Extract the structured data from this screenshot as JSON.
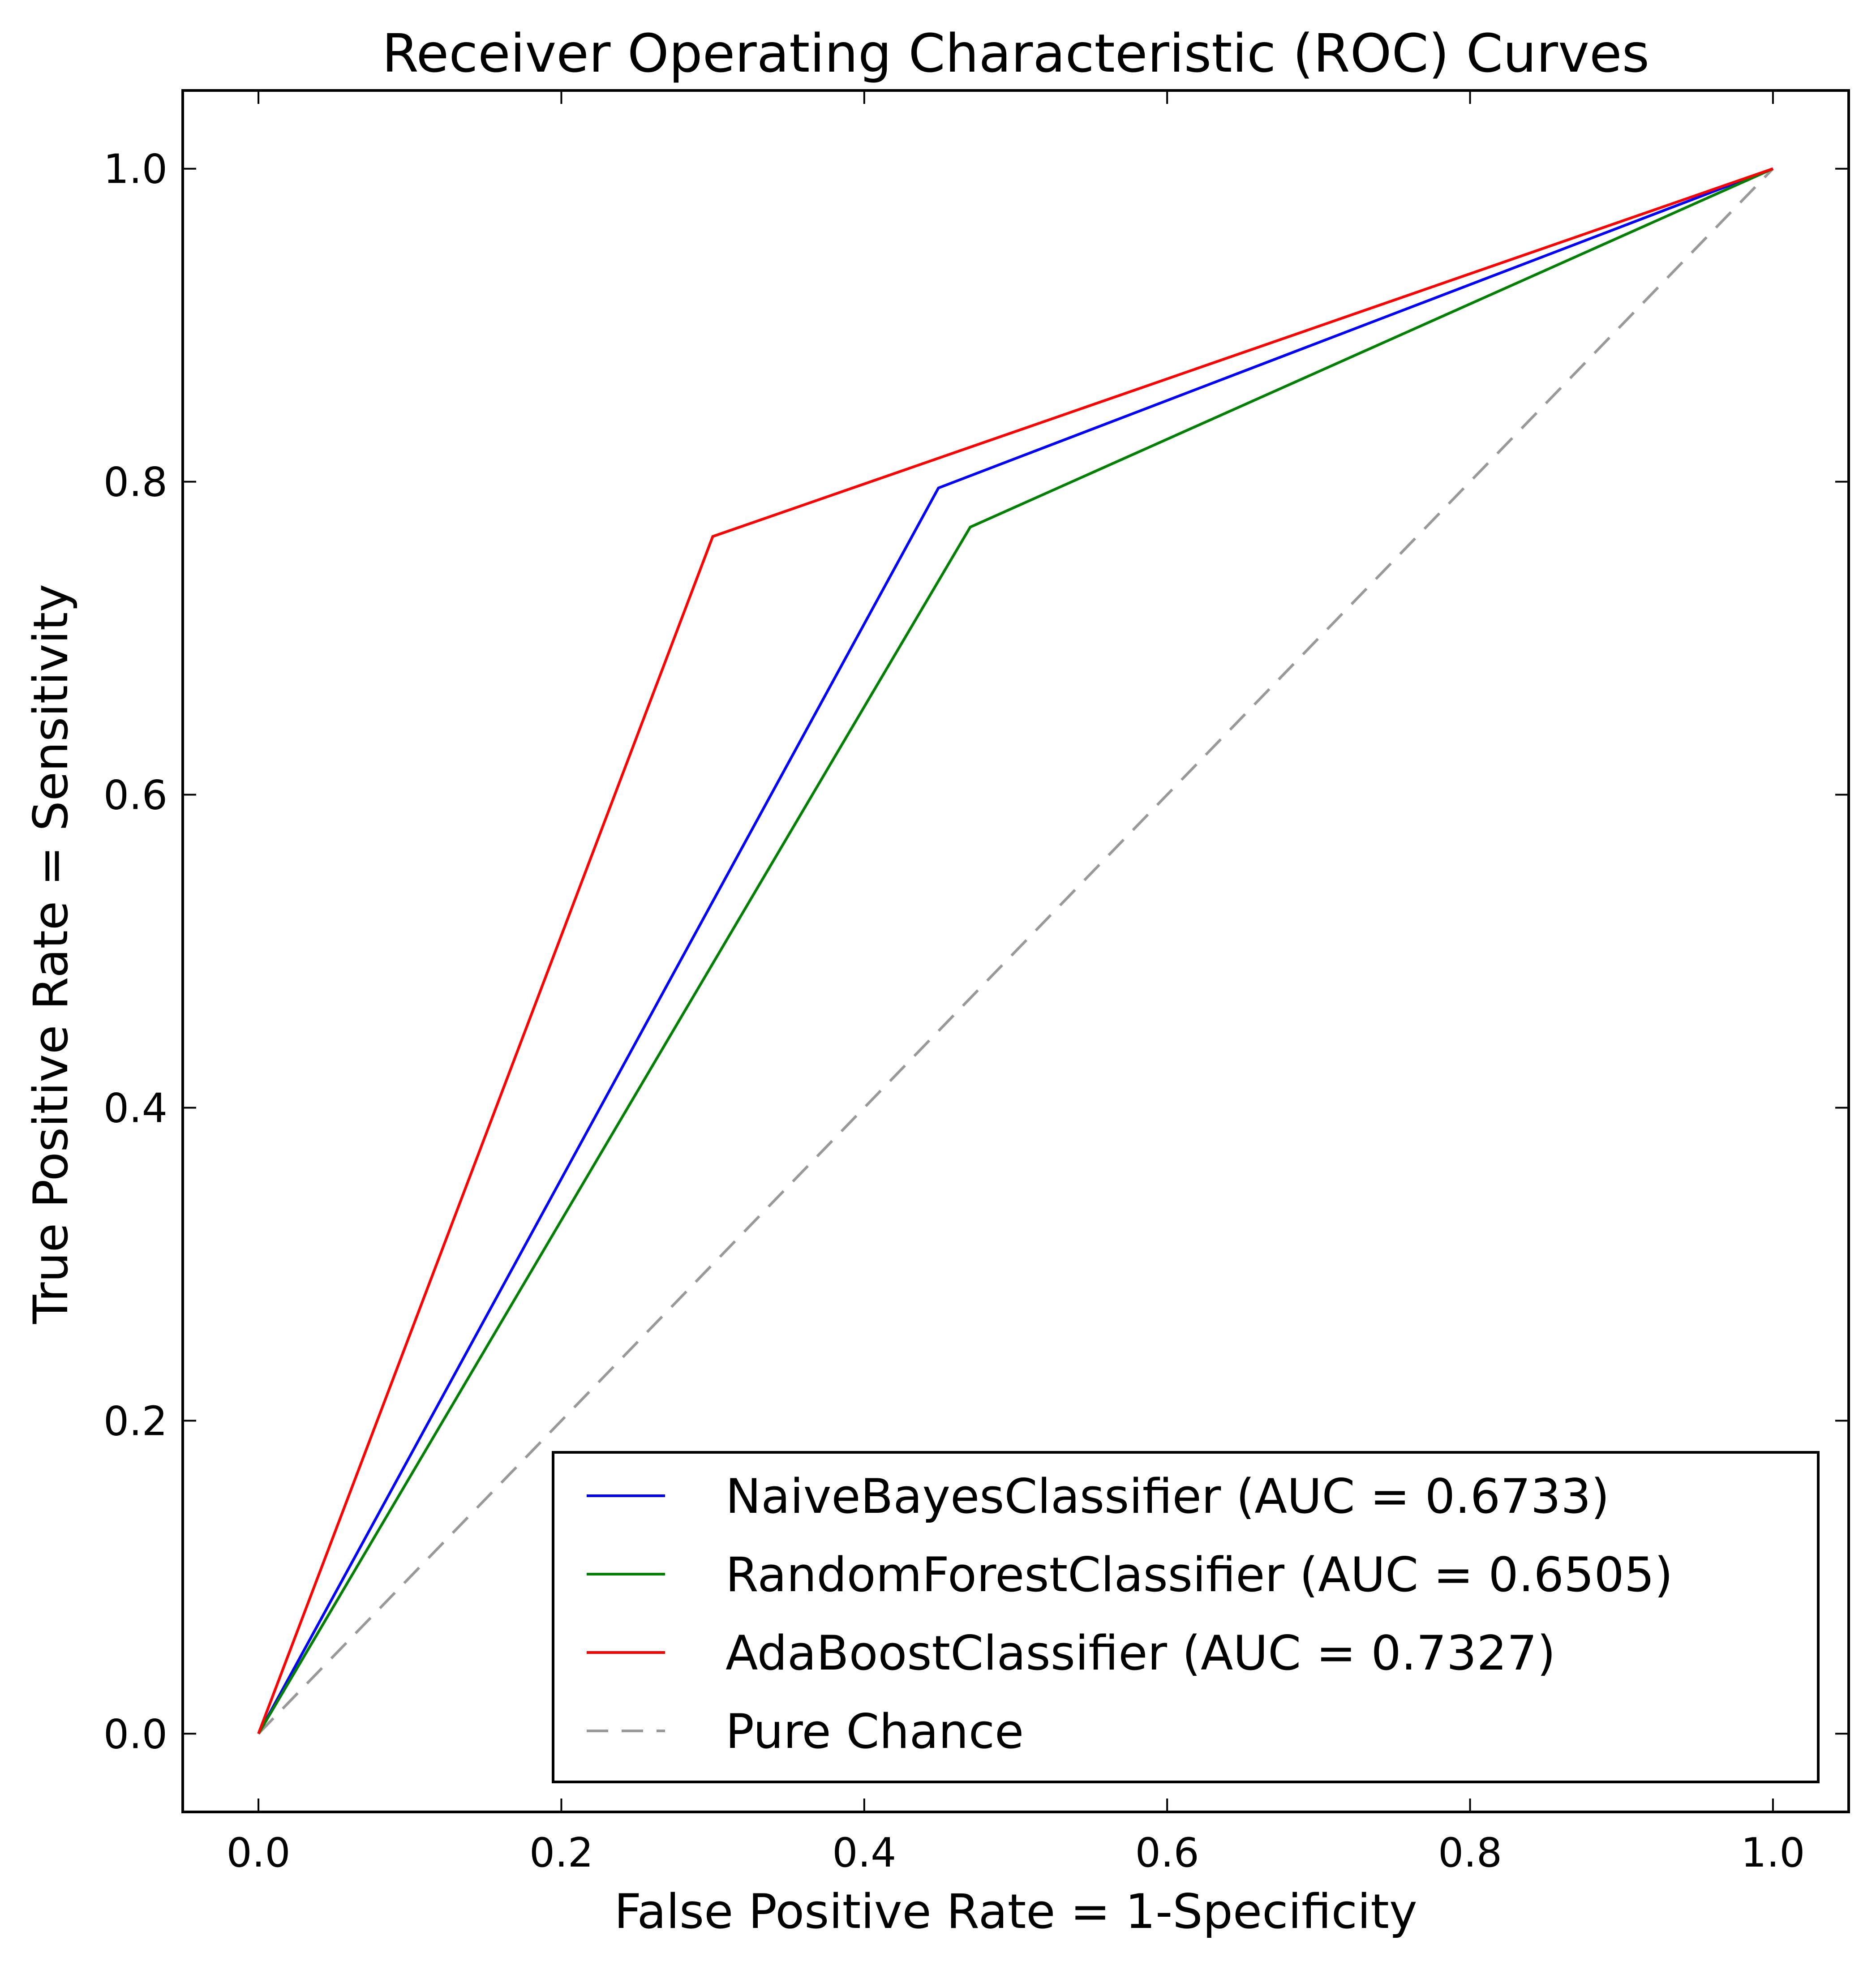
{
  "chart_data": {
    "type": "line",
    "title": "Receiver Operating Characteristic (ROC) Curves",
    "xlabel": "False Positive Rate = 1-Specificity",
    "ylabel": "True Positive Rate = Sensitivity",
    "xlim": [
      -0.05,
      1.05
    ],
    "ylim": [
      -0.05,
      1.05
    ],
    "xticks": [
      "0.0",
      "0.2",
      "0.4",
      "0.6",
      "0.8",
      "1.0"
    ],
    "yticks": [
      "0.0",
      "0.2",
      "0.4",
      "0.6",
      "0.8",
      "1.0"
    ],
    "xtick_values": [
      0.0,
      0.2,
      0.4,
      0.6,
      0.8,
      1.0
    ],
    "ytick_values": [
      0.0,
      0.2,
      0.4,
      0.6,
      0.8,
      1.0
    ],
    "grid": false,
    "legend_position": "lower-right",
    "series": [
      {
        "name": "NaiveBayesClassifier (AUC = 0.6733)",
        "color": "#0000ff",
        "style": "solid",
        "points": [
          [
            0.0,
            0.0
          ],
          [
            0.449,
            0.796
          ],
          [
            1.0,
            1.0
          ]
        ]
      },
      {
        "name": "RandomForestClassifier (AUC = 0.6505)",
        "color": "#008000",
        "style": "solid",
        "points": [
          [
            0.0,
            0.0
          ],
          [
            0.47,
            0.771
          ],
          [
            1.0,
            1.0
          ]
        ]
      },
      {
        "name": "AdaBoostClassifier (AUC = 0.7327)",
        "color": "#ff0000",
        "style": "solid",
        "points": [
          [
            0.0,
            0.0
          ],
          [
            0.3,
            0.765
          ],
          [
            1.0,
            1.0
          ]
        ]
      },
      {
        "name": "Pure Chance",
        "color": "#999999",
        "style": "dashed",
        "points": [
          [
            0.0,
            0.0
          ],
          [
            1.0,
            1.0
          ]
        ]
      }
    ]
  }
}
